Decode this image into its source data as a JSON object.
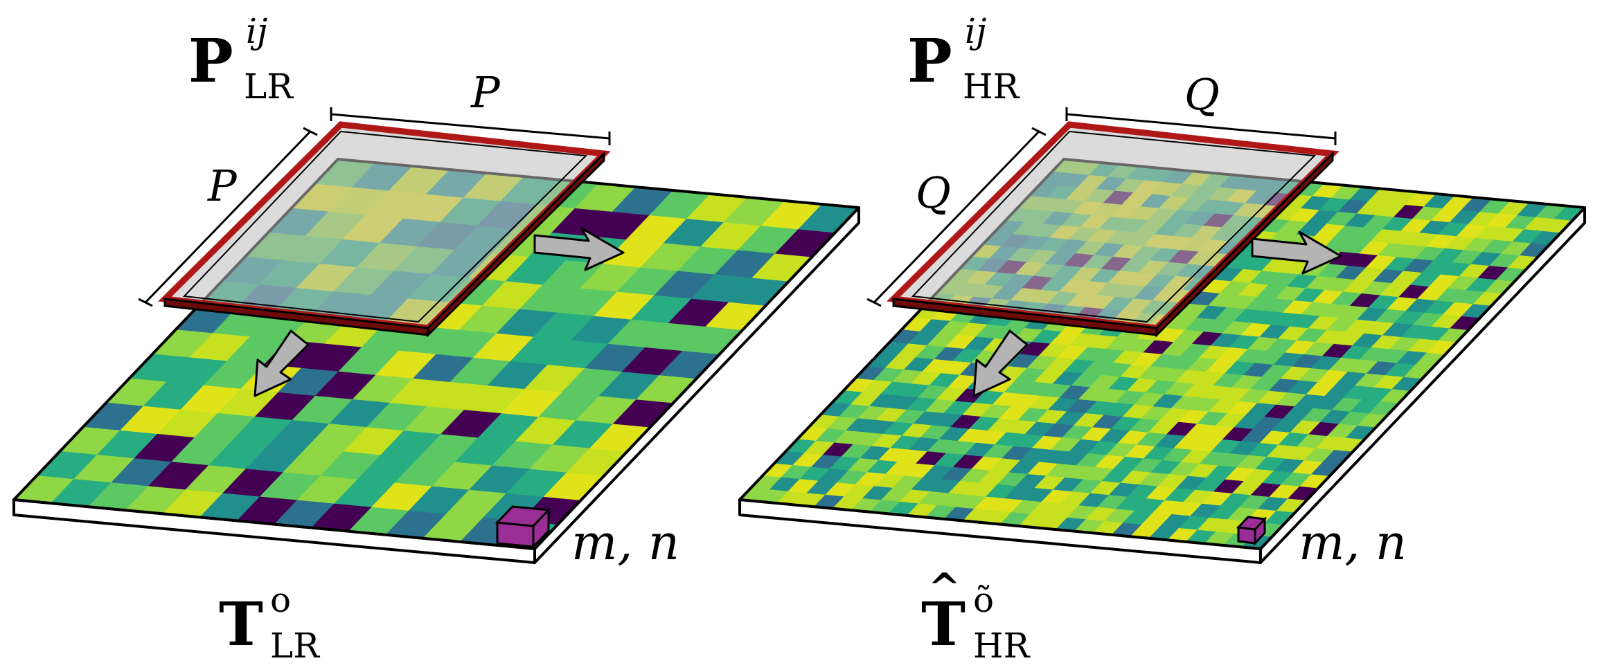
{
  "left": {
    "patch_main": "P",
    "patch_sup": "ij",
    "patch_sub": "LR",
    "side_a": "P",
    "side_b": "P",
    "cell": "m, n",
    "tensor_main": "T",
    "tensor_sup": "o",
    "tensor_sub": "LR",
    "grid_cells": 14
  },
  "right": {
    "patch_main": "P",
    "patch_sup": "ij",
    "patch_sub": "HR",
    "side_a": "Q",
    "side_b": "Q",
    "cell": "m, n",
    "tensor_main": "T",
    "tensor_sup": "õ",
    "tensor_sub": "HR",
    "grid_cells": 28
  },
  "colors": {
    "frame": "#b01818",
    "frame_dark": "#6e0a0a",
    "arrow": "#b4b4b4",
    "cube": "#9a2d96",
    "patch_fill": "#bebebe",
    "slab_side": "#ffffff"
  }
}
